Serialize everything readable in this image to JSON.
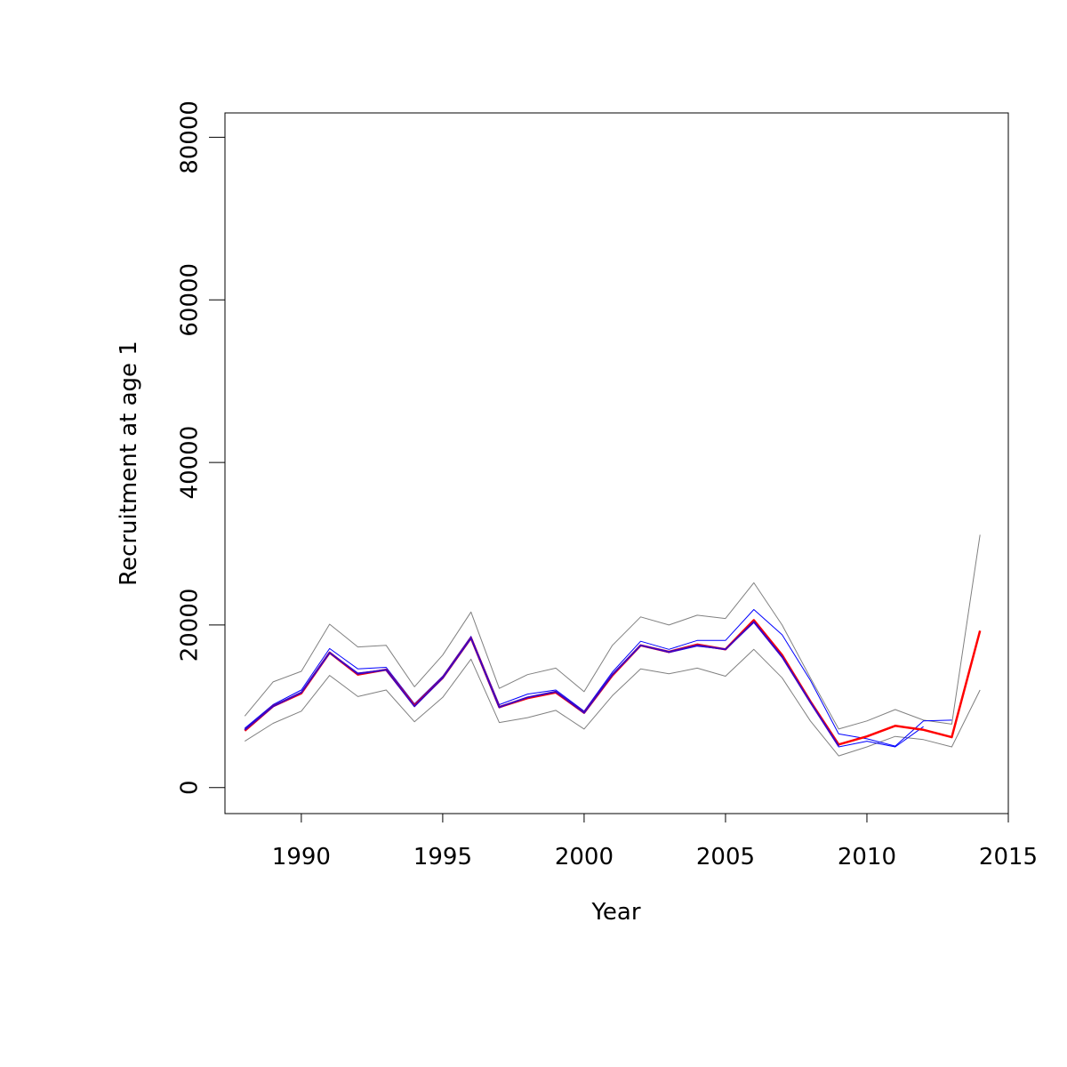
{
  "chart_data": {
    "type": "line",
    "title": "",
    "xlabel": "Year",
    "ylabel": "Recruitment at age 1",
    "xlim": [
      1987.3,
      2015.0
    ],
    "ylim": [
      -3200,
      83000
    ],
    "x_ticks": [
      1990,
      1995,
      2000,
      2005,
      2010,
      2015
    ],
    "x_tick_labels": [
      "1990",
      "1995",
      "2000",
      "2005",
      "2010",
      "2015"
    ],
    "y_ticks": [
      0,
      20000,
      40000,
      60000,
      80000
    ],
    "y_tick_labels": [
      "0",
      "20000",
      "40000",
      "60000",
      "80000"
    ],
    "grid": false,
    "legend": "none",
    "x": [
      1988,
      1989,
      1990,
      1991,
      1992,
      1993,
      1994,
      1995,
      1996,
      1997,
      1998,
      1999,
      2000,
      2001,
      2002,
      2003,
      2004,
      2005,
      2006,
      2007,
      2008,
      2009,
      2010,
      2011,
      2012,
      2013,
      2014
    ],
    "series": [
      {
        "color": "#808080",
        "width": 1,
        "x": [
          1988,
          1989,
          1990,
          1991,
          1992,
          1993,
          1994,
          1995,
          1996,
          1997,
          1998,
          1999,
          2000,
          2001,
          2002,
          2003,
          2004,
          2005,
          2006,
          2007,
          2008,
          2009,
          2010,
          2011,
          2012,
          2013,
          2014
        ],
        "values": [
          8800,
          13000,
          14300,
          20100,
          17300,
          17500,
          12400,
          16300,
          21600,
          12200,
          13900,
          14700,
          11800,
          17500,
          21000,
          20000,
          21200,
          20800,
          25200,
          20000,
          13500,
          7200,
          8200,
          9600,
          8300,
          7800,
          31100
        ]
      },
      {
        "color": "#808080",
        "width": 1,
        "x": [
          1988,
          1989,
          1990,
          1991,
          1992,
          1993,
          1994,
          1995,
          1996,
          1997,
          1998,
          1999,
          2000,
          2001,
          2002,
          2003,
          2004,
          2005,
          2006,
          2007,
          2008,
          2009,
          2010,
          2011,
          2012,
          2013,
          2014
        ],
        "values": [
          5700,
          7900,
          9400,
          13800,
          11200,
          12000,
          8100,
          11100,
          15800,
          8000,
          8600,
          9500,
          7200,
          11300,
          14600,
          14000,
          14700,
          13700,
          17000,
          13500,
          8200,
          3900,
          5000,
          6300,
          5900,
          5000,
          12000
        ]
      },
      {
        "color": "#0000ff",
        "width": 1,
        "x": [
          1988,
          1989,
          1990,
          1991,
          1992,
          1993,
          1994,
          1995,
          1996,
          1997,
          1998,
          1999,
          2000,
          2001,
          2002,
          2003,
          2004,
          2005,
          2006,
          2007,
          2008,
          2009,
          2010,
          2011,
          2012,
          2013
        ],
        "values": [
          7300,
          10200,
          12000,
          17100,
          14600,
          14800,
          10300,
          13700,
          18600,
          10200,
          11500,
          12000,
          9400,
          14200,
          18000,
          17000,
          18100,
          18100,
          21900,
          18800,
          13200,
          6600,
          6000,
          5100,
          8200,
          8300
        ]
      },
      {
        "color": "#0000ff",
        "width": 1,
        "x": [
          1988,
          1989,
          1990,
          1991,
          1992,
          1993,
          1994,
          1995,
          1996,
          1997,
          1998,
          1999,
          2000,
          2001,
          2002,
          2003,
          2004,
          2005,
          2006,
          2007,
          2008,
          2009,
          2010,
          2011,
          2012
        ],
        "values": [
          7200,
          10000,
          11700,
          16600,
          14100,
          14500,
          10000,
          13500,
          18300,
          9800,
          11100,
          11800,
          9200,
          13900,
          17500,
          16600,
          17400,
          17000,
          20300,
          16000,
          10500,
          5000,
          5700,
          5000,
          7500
        ]
      },
      {
        "color": "#ff0000",
        "width": 2.5,
        "x": [
          1988,
          1989,
          1990,
          1991,
          1992,
          1993,
          1994,
          1995,
          1996,
          1997,
          1998,
          1999,
          2000,
          2001,
          2002,
          2003,
          2004,
          2005,
          2006,
          2007,
          2008,
          2009,
          2010,
          2011,
          2012,
          2013,
          2014
        ],
        "values": [
          7000,
          10000,
          11600,
          16600,
          13900,
          14500,
          10100,
          13500,
          18400,
          9900,
          11000,
          11700,
          9200,
          13800,
          17500,
          16700,
          17600,
          17000,
          20600,
          16300,
          10600,
          5300,
          6300,
          7600,
          7100,
          6200,
          19300
        ]
      },
      {
        "color": "#4000c0",
        "width": 2,
        "x": [
          1988,
          1989,
          1990,
          1991,
          1992,
          1993,
          1994,
          1995,
          1996,
          1997,
          1998,
          1999,
          2000,
          2001,
          2002,
          2003,
          2004,
          2005,
          2006,
          2007,
          2008,
          2009
        ],
        "values": [
          7100,
          10000,
          11700,
          16600,
          14000,
          14500,
          10000,
          13500,
          18400,
          9900,
          11100,
          11800,
          9200,
          13900,
          17500,
          16700,
          17500,
          17000,
          20400,
          16100,
          10500,
          5100
        ]
      }
    ]
  }
}
